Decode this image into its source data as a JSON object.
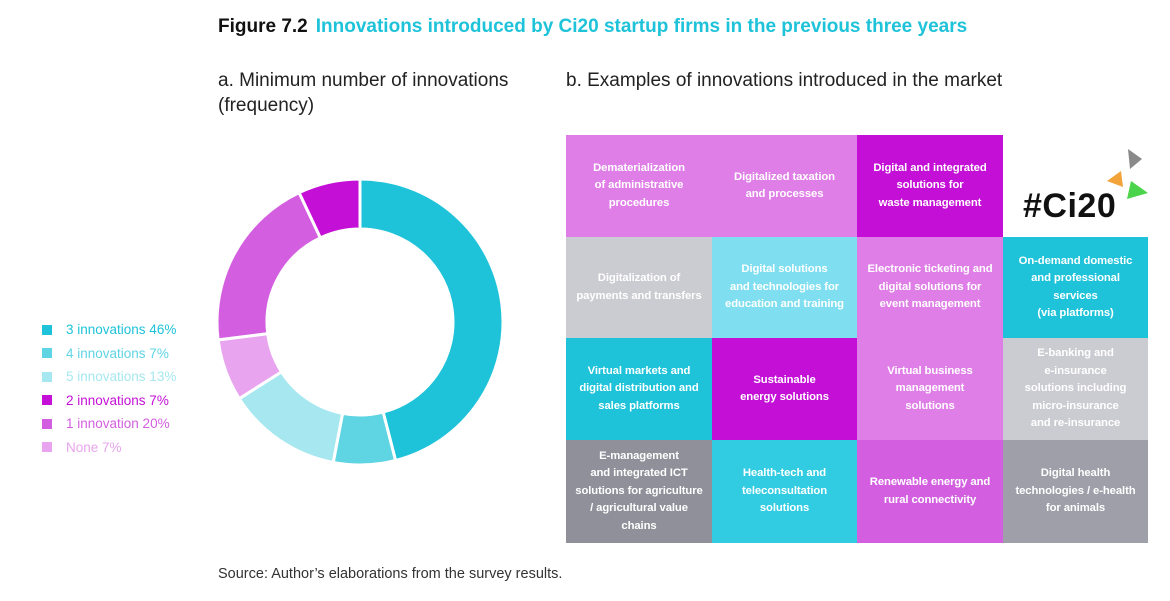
{
  "figure": {
    "number": "Figure 7.2",
    "title": "Innovations introduced by Ci20 startup firms in the previous three years"
  },
  "panel_a": {
    "title": "a. Minimum number of innovations (frequency)"
  },
  "panel_b": {
    "title": "b. Examples of innovations introduced in the market"
  },
  "source": "Source: Author’s elaborations from the survey results.",
  "logo": {
    "text": "#Ci20",
    "colors": [
      "#8a8a8a",
      "#f2a33a",
      "#4cd34c"
    ]
  },
  "chart_data": {
    "type": "pie",
    "donut": true,
    "title": "a. Minimum number of innovations (frequency)",
    "legend_placement": "left",
    "slices": [
      {
        "label": "3 innovations 46%",
        "value": 46,
        "color": "#1ec3da"
      },
      {
        "label": "4 innovations 7%",
        "value": 7,
        "color": "#5fd4e3"
      },
      {
        "label": "5 innovations 13%",
        "value": 13,
        "color": "#a6e7f0"
      },
      {
        "label": "None 7%",
        "value": 7,
        "color": "#e8a4ee"
      },
      {
        "label": "1 innovation 20%",
        "value": 20,
        "color": "#d35fe0"
      },
      {
        "label": "2 innovations 7%",
        "value": 7,
        "color": "#c40fd6"
      }
    ],
    "legend": [
      {
        "label": "3 innovations 46%",
        "color": "#1ec3da"
      },
      {
        "label": "4 innovations 7%",
        "color": "#5fd4e3"
      },
      {
        "label": "5 innovations 13%",
        "color": "#a6e7f0"
      },
      {
        "label": "2 innovations 7%",
        "color": "#c40fd6"
      },
      {
        "label": "1 innovation 20%",
        "color": "#d35fe0"
      },
      {
        "label": "None 7%",
        "color": "#e8a4ee"
      }
    ]
  },
  "innovations": {
    "title": "b. Examples of innovations introduced in the market",
    "rows": [
      [
        {
          "text": "Dematerialization\nof administrative\nprocedures",
          "color": "#e07ee8"
        },
        {
          "text": "Digitalized taxation\nand processes",
          "color": "#e07ee8"
        },
        {
          "text": "Digital and integrated\nsolutions for\nwaste management",
          "color": "#c40fd6"
        },
        {
          "logo": true
        }
      ],
      [
        {
          "text": "Digitalization of\npayments and transfers",
          "color": "#cbcbd2"
        },
        {
          "text": "Digital solutions\nand technologies for\neducation and training",
          "color": "#7fdff0"
        },
        {
          "text": "Electronic ticketing and\ndigital solutions for\nevent management",
          "color": "#e07ee8"
        },
        {
          "text": "On-demand domestic\nand professional services\n(via platforms)",
          "color": "#1ec3da"
        }
      ],
      [
        {
          "text": "Virtual markets and\ndigital distribution and\nsales platforms",
          "color": "#1ec3da"
        },
        {
          "text": "Sustainable\nenergy solutions",
          "color": "#c40fd6"
        },
        {
          "text": "Virtual business\nmanagement\nsolutions",
          "color": "#e07ee8"
        },
        {
          "text": "E-banking and\ne-insurance\nsolutions including\nmicro-insurance\nand re-insurance",
          "color": "#cbcbd2"
        }
      ],
      [
        {
          "text": "E-management\nand integrated ICT\nsolutions for agriculture\n/ agricultural value chains",
          "color": "#8f9099"
        },
        {
          "text": "Health-tech and\nteleconsultation\nsolutions",
          "color": "#31cce2"
        },
        {
          "text": "Renewable energy and\nrural connectivity",
          "color": "#d35fe0"
        },
        {
          "text": "Digital health\ntechnologies / e-health\nfor animals",
          "color": "#9e9fa8"
        }
      ]
    ]
  }
}
